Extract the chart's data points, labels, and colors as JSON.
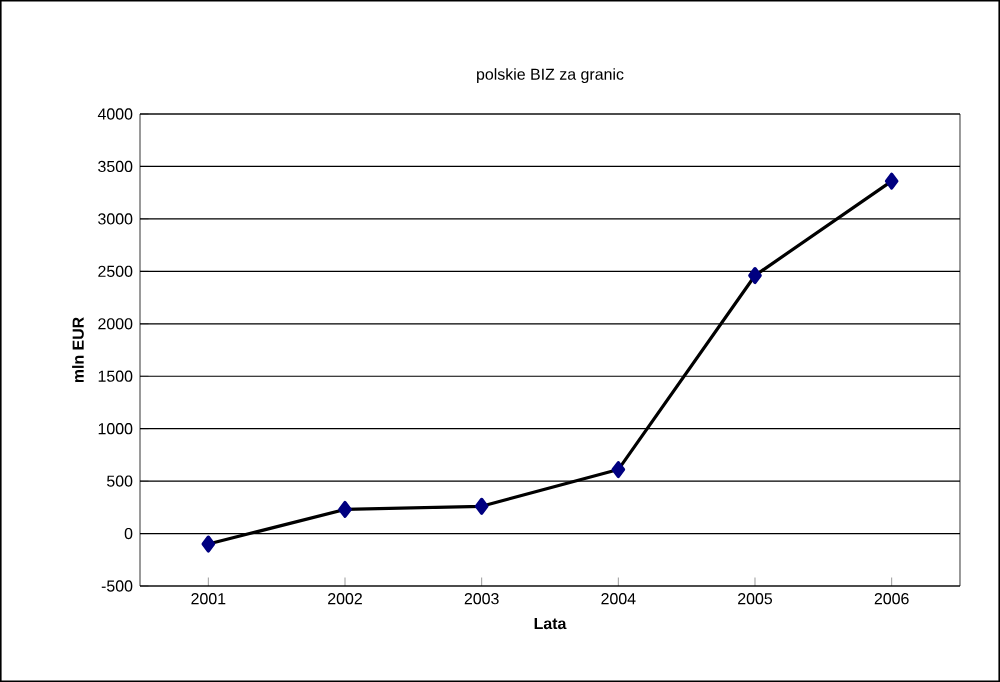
{
  "chart_data": {
    "type": "line",
    "title": "polskie BIZ za granic",
    "xlabel": "Lata",
    "ylabel": "mln EUR",
    "categories": [
      "2001",
      "2002",
      "2003",
      "2004",
      "2005",
      "2006"
    ],
    "series": [
      {
        "color": "#000000",
        "values": [
          -100,
          230,
          260,
          610,
          2460,
          3360
        ]
      }
    ],
    "marker": "diamond",
    "line_style": "solid",
    "ylim": [
      -500,
      4000
    ],
    "yticks": [
      -500,
      0,
      500,
      1000,
      1500,
      2000,
      2500,
      3000,
      3500,
      4000
    ],
    "grid": "y"
  }
}
